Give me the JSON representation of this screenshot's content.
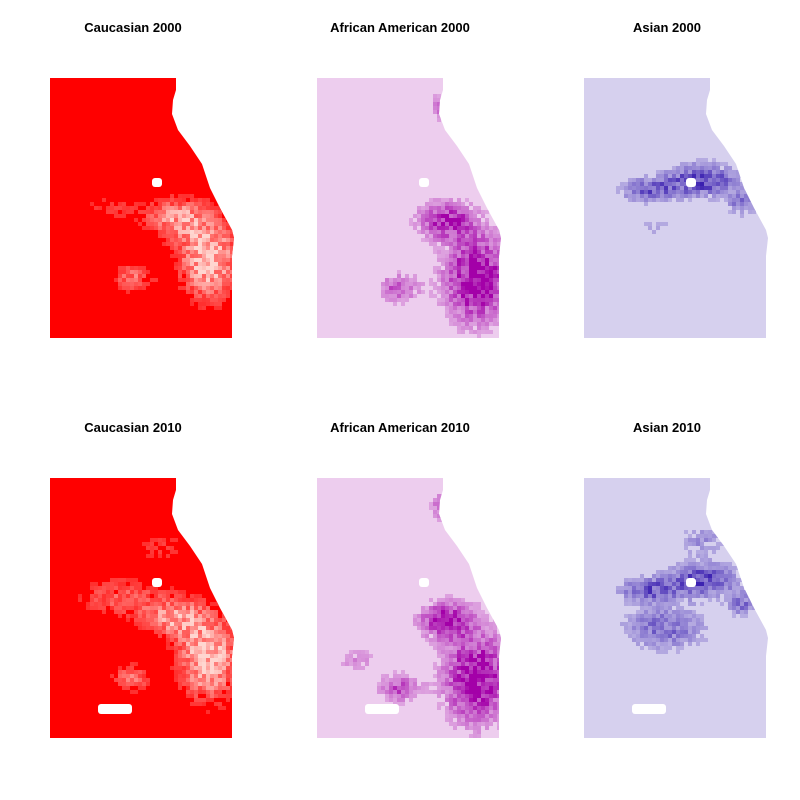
{
  "panels": [
    {
      "title": "Caucasian 2000",
      "group": "caucasian",
      "year": "2000",
      "base_color": "#ff0000",
      "high_color": "#ffd6d0"
    },
    {
      "title": "African American 2000",
      "group": "african_american",
      "year": "2000",
      "base_color": "#edcdee",
      "high_color": "#a300a8"
    },
    {
      "title": "Asian 2000",
      "group": "asian",
      "year": "2000",
      "base_color": "#d6d0ee",
      "high_color": "#3a1fb0"
    },
    {
      "title": "Caucasian 2010",
      "group": "caucasian",
      "year": "2010",
      "base_color": "#ff0000",
      "high_color": "#ffd6d0"
    },
    {
      "title": "African American 2010",
      "group": "african_american",
      "year": "2010",
      "base_color": "#edcdee",
      "high_color": "#a300a8"
    },
    {
      "title": "Asian 2010",
      "group": "asian",
      "year": "2010",
      "base_color": "#d6d0ee",
      "high_color": "#3a1fb0"
    }
  ]
}
